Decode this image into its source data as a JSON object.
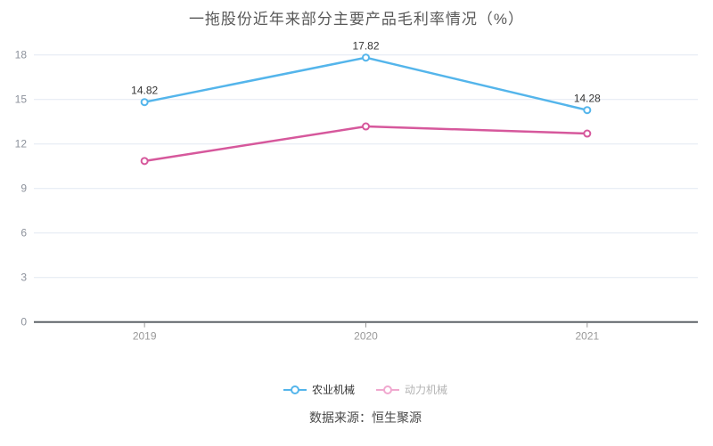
{
  "title": "一拖股份近年来部分主要产品毛利率情况（%）",
  "source": "数据来源：恒生聚源",
  "colors": {
    "series_blue": "#54b5eb",
    "series_pink": "#d6589c",
    "grid_line": "#e2e8f2",
    "axis_line": "#5f6368",
    "x_tick_mark": "#999999",
    "y_tick_text": "#8c919b",
    "x_tick_text": "#999999",
    "point_label_text": "#333333",
    "legend_active_text": "#333333",
    "legend_muted_text": "#b3b3b3",
    "legend_muted_icon": "#f0a8cf",
    "marker_fill": "#ffffff"
  },
  "chart_data": {
    "type": "line",
    "categories": [
      "2019",
      "2020",
      "2021"
    ],
    "series": [
      {
        "name": "农业机械",
        "color": "#54b5eb",
        "values": [
          14.82,
          17.82,
          14.28
        ],
        "labels": [
          "14.82",
          "17.82",
          "14.28"
        ]
      },
      {
        "name": "动力机械",
        "color": "#d6589c",
        "values": [
          10.85,
          13.18,
          12.7
        ],
        "labels": []
      }
    ],
    "ylabel": "",
    "xlabel": "",
    "ylim": [
      0,
      18
    ],
    "yticks": [
      0,
      3,
      6,
      9,
      12,
      15,
      18
    ],
    "grid": true,
    "legend_position": "bottom"
  },
  "legend": {
    "items": [
      {
        "series_index": 0,
        "muted": false
      },
      {
        "series_index": 1,
        "muted": true
      }
    ]
  }
}
